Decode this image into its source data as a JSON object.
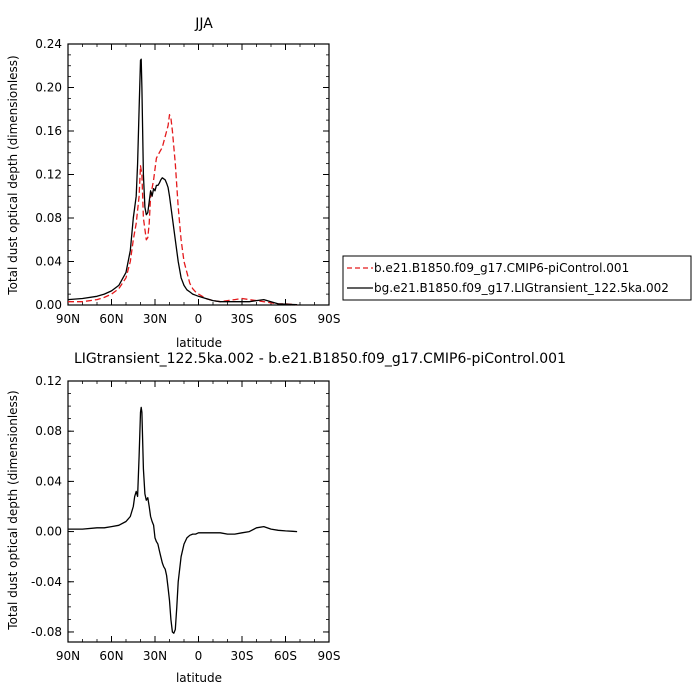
{
  "chart_data": [
    {
      "type": "line",
      "title": "JJA",
      "xlabel": "latitude",
      "ylabel": "Total dust optical depth (dimensionless)",
      "xlim": [
        90,
        -90
      ],
      "ylim": [
        0,
        0.24
      ],
      "xticks": [
        {
          "value": 90,
          "label": "90N"
        },
        {
          "value": 60,
          "label": "60N"
        },
        {
          "value": 30,
          "label": "30N"
        },
        {
          "value": 0,
          "label": "0"
        },
        {
          "value": -30,
          "label": "30S"
        },
        {
          "value": -60,
          "label": "60S"
        },
        {
          "value": -90,
          "label": "90S"
        }
      ],
      "yticks": [
        {
          "value": 0.0,
          "label": "0.00"
        },
        {
          "value": 0.04,
          "label": "0.04"
        },
        {
          "value": 0.08,
          "label": "0.08"
        },
        {
          "value": 0.12,
          "label": "0.12"
        },
        {
          "value": 0.16,
          "label": "0.16"
        },
        {
          "value": 0.2,
          "label": "0.20"
        },
        {
          "value": 0.24,
          "label": "0.24"
        }
      ],
      "grid": false,
      "legend_position": "right",
      "series": [
        {
          "name": "b.e21.B1850.f09_g17.CMIP6-piControl.001",
          "color": "#e41a1c",
          "dash": "dashed",
          "x": [
            90,
            80,
            70,
            65,
            60,
            55,
            50,
            47,
            45,
            43,
            41,
            40,
            39,
            38,
            36,
            35,
            34,
            33,
            31,
            29,
            27,
            25,
            23,
            21,
            20,
            19,
            18,
            16,
            14,
            12,
            10,
            8,
            6,
            4,
            2,
            0,
            -5,
            -10,
            -15,
            -20,
            -25,
            -30,
            -35,
            -40,
            -45,
            -50,
            -55,
            -60,
            -65,
            -68
          ],
          "y": [
            0.003,
            0.003,
            0.005,
            0.007,
            0.01,
            0.015,
            0.025,
            0.04,
            0.06,
            0.075,
            0.1,
            0.128,
            0.12,
            0.08,
            0.06,
            0.062,
            0.075,
            0.1,
            0.115,
            0.135,
            0.14,
            0.145,
            0.155,
            0.165,
            0.175,
            0.172,
            0.16,
            0.13,
            0.09,
            0.06,
            0.04,
            0.03,
            0.02,
            0.015,
            0.012,
            0.01,
            0.006,
            0.004,
            0.003,
            0.004,
            0.005,
            0.006,
            0.005,
            0.004,
            0.003,
            0.002,
            0.001,
            0.001,
            0.0005,
            0.0003
          ]
        },
        {
          "name": "bg.e21.B1850.f09_g17.LIGtransient_122.5ka.002",
          "color": "#000000",
          "dash": "solid",
          "x": [
            90,
            80,
            70,
            65,
            60,
            55,
            50,
            47,
            45,
            43,
            42,
            41,
            40,
            39.5,
            39,
            38,
            37,
            36,
            35,
            34,
            33,
            32,
            31,
            30,
            29,
            28,
            27,
            26,
            25,
            24,
            23,
            22,
            21,
            20,
            18,
            16,
            14,
            12,
            10,
            8,
            6,
            4,
            2,
            0,
            -5,
            -10,
            -15,
            -20,
            -25,
            -30,
            -35,
            -40,
            -45,
            -50,
            -55,
            -60,
            -65,
            -68
          ],
          "y": [
            0.005,
            0.006,
            0.008,
            0.01,
            0.013,
            0.018,
            0.03,
            0.05,
            0.08,
            0.1,
            0.13,
            0.18,
            0.225,
            0.226,
            0.2,
            0.12,
            0.09,
            0.083,
            0.085,
            0.095,
            0.105,
            0.1,
            0.107,
            0.105,
            0.11,
            0.11,
            0.112,
            0.115,
            0.117,
            0.116,
            0.115,
            0.112,
            0.108,
            0.1,
            0.08,
            0.06,
            0.04,
            0.025,
            0.018,
            0.014,
            0.012,
            0.01,
            0.009,
            0.008,
            0.006,
            0.004,
            0.003,
            0.003,
            0.003,
            0.003,
            0.003,
            0.004,
            0.005,
            0.003,
            0.001,
            0.0008,
            0.0005,
            0.0003
          ]
        }
      ]
    },
    {
      "type": "line",
      "title": "LIGtransient_122.5ka.002 - b.e21.B1850.f09_g17.CMIP6-piControl.001",
      "xlabel": "latitude",
      "ylabel": "Total dust optical depth (dimensionless)",
      "xlim": [
        90,
        -90
      ],
      "ylim": [
        -0.088,
        0.12
      ],
      "xticks": [
        {
          "value": 90,
          "label": "90N"
        },
        {
          "value": 60,
          "label": "60N"
        },
        {
          "value": 30,
          "label": "30N"
        },
        {
          "value": 0,
          "label": "0"
        },
        {
          "value": -30,
          "label": "30S"
        },
        {
          "value": -60,
          "label": "60S"
        },
        {
          "value": -90,
          "label": "90S"
        }
      ],
      "yticks": [
        {
          "value": -0.08,
          "label": "-0.08"
        },
        {
          "value": -0.04,
          "label": "-0.04"
        },
        {
          "value": 0.0,
          "label": "0.00"
        },
        {
          "value": 0.04,
          "label": "0.04"
        },
        {
          "value": 0.08,
          "label": "0.08"
        },
        {
          "value": 0.12,
          "label": "0.12"
        }
      ],
      "grid": false,
      "series": [
        {
          "name": "",
          "color": "#000000",
          "dash": "solid",
          "x": [
            90,
            80,
            70,
            65,
            60,
            55,
            50,
            47,
            45,
            44,
            43,
            42,
            41,
            40,
            39.5,
            39,
            38,
            37,
            36,
            35,
            34,
            33,
            32,
            31,
            30,
            29,
            28,
            27,
            26,
            25,
            24,
            23,
            22,
            21,
            20,
            19,
            18,
            17,
            16,
            15,
            14,
            12,
            10,
            8,
            6,
            4,
            2,
            0,
            -5,
            -10,
            -15,
            -20,
            -25,
            -30,
            -35,
            -40,
            -45,
            -50,
            -55,
            -60,
            -65,
            -68
          ],
          "y": [
            0.002,
            0.002,
            0.003,
            0.003,
            0.004,
            0.005,
            0.008,
            0.012,
            0.02,
            0.028,
            0.032,
            0.028,
            0.06,
            0.095,
            0.099,
            0.095,
            0.05,
            0.03,
            0.025,
            0.027,
            0.02,
            0.012,
            0.008,
            0.005,
            -0.005,
            -0.008,
            -0.01,
            -0.015,
            -0.02,
            -0.025,
            -0.028,
            -0.03,
            -0.035,
            -0.045,
            -0.055,
            -0.07,
            -0.08,
            -0.081,
            -0.078,
            -0.06,
            -0.04,
            -0.02,
            -0.01,
            -0.005,
            -0.003,
            -0.002,
            -0.002,
            -0.001,
            -0.001,
            -0.001,
            -0.001,
            -0.002,
            -0.002,
            -0.001,
            0.0,
            0.003,
            0.004,
            0.002,
            0.001,
            0.0005,
            0.0002,
            0.0
          ]
        }
      ]
    }
  ]
}
